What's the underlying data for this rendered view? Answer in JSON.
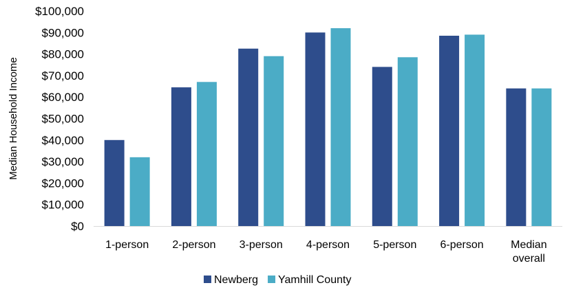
{
  "chart_data": {
    "type": "bar",
    "title": "",
    "xlabel": "",
    "ylabel": "Median Household Income",
    "ylim": [
      0,
      100000
    ],
    "ytick_step": 10000,
    "ytick_labels": [
      "$0",
      "$10,000",
      "$20,000",
      "$30,000",
      "$40,000",
      "$50,000",
      "$60,000",
      "$70,000",
      "$80,000",
      "$90,000",
      "$100,000"
    ],
    "categories": [
      [
        "1-person"
      ],
      [
        "2-person"
      ],
      [
        "3-person"
      ],
      [
        "4-person"
      ],
      [
        "5-person"
      ],
      [
        "6-person"
      ],
      [
        "Median",
        "overall"
      ]
    ],
    "series": [
      {
        "name": "Newberg",
        "color": "#2E4D8C",
        "values": [
          40000,
          64500,
          82500,
          90000,
          74000,
          88500,
          64000
        ]
      },
      {
        "name": "Yamhill County",
        "color": "#4BACC6",
        "values": [
          32000,
          67000,
          79000,
          92000,
          78500,
          89000,
          64000
        ]
      }
    ],
    "grid": false,
    "legend": "bottom"
  }
}
